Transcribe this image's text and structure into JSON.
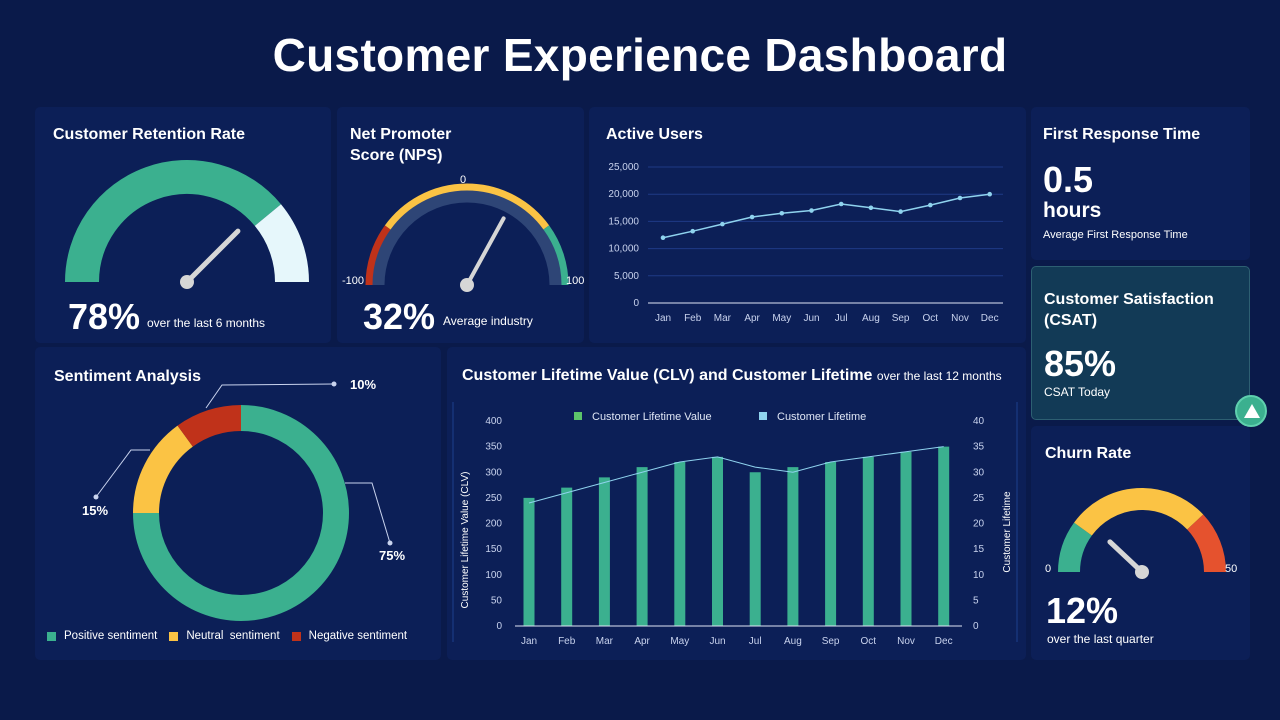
{
  "header": {
    "title": "Customer Experience Dashboard"
  },
  "colors": {
    "background": "#0a1a4a",
    "card": "#0c1f57",
    "green": "#3bb08f",
    "yellow": "#fbc344",
    "red": "#c0321a",
    "orange_red": "#e5522e",
    "light_blue": "#8fd3ee",
    "csat_card": "#123a56"
  },
  "retention": {
    "title": "Customer Retention Rate",
    "value": "78%",
    "value_fraction": 0.78,
    "caption": "over the last 6 months"
  },
  "nps": {
    "title_line1": "Net Promoter",
    "title_line2": "Score (NPS)",
    "value": "32%",
    "caption": "Average industry",
    "min_label": "-100",
    "mid_label": "0",
    "max_label": "100",
    "needle_value": 32
  },
  "active_users": {
    "title": "Active Users"
  },
  "first_response": {
    "title": "First Response Time",
    "value": "0.5",
    "unit": "hours",
    "caption": "Average First Response Time"
  },
  "csat": {
    "title_line1": "Customer Satisfaction",
    "title_line2": "(CSAT)",
    "value": "85%",
    "caption": "CSAT Today",
    "trend_icon": "triangle-up-icon"
  },
  "churn": {
    "title": "Churn Rate",
    "value": "12%",
    "caption": "over the last quarter",
    "min_label": "0",
    "max_label": "50",
    "needle_value": 12
  },
  "sentiment": {
    "title": "Sentiment Analysis",
    "labels": {
      "positive": "75%",
      "neutral": "15%",
      "negative": "10%"
    },
    "legend": [
      {
        "label": "Positive sentiment",
        "color": "#3bb08f"
      },
      {
        "label": "Neutral  sentiment",
        "color": "#fbc344"
      },
      {
        "label": "Negative sentiment",
        "color": "#c0321a"
      }
    ]
  },
  "clv": {
    "title": "Customer Lifetime Value (CLV) and Customer Lifetime",
    "subtitle": "over the last 12 months"
  },
  "chart_data": [
    {
      "type": "line",
      "title": "Active Users",
      "categories": [
        "Jan",
        "Feb",
        "Mar",
        "Apr",
        "May",
        "Jun",
        "Jul",
        "Aug",
        "Sep",
        "Oct",
        "Nov",
        "Dec"
      ],
      "values": [
        12000,
        13200,
        14500,
        15800,
        16500,
        17000,
        18200,
        17500,
        16800,
        18000,
        19300,
        20000
      ],
      "ylim": [
        0,
        25000
      ],
      "yticks": [
        "0",
        "5,000",
        "10,000",
        "15,000",
        "20,000",
        "25,000"
      ],
      "grid": true
    },
    {
      "type": "bar",
      "title": "Customer Lifetime Value (CLV) and Customer Lifetime",
      "categories": [
        "Jan",
        "Feb",
        "Mar",
        "Apr",
        "May",
        "Jun",
        "Jul",
        "Aug",
        "Sep",
        "Oct",
        "Nov",
        "Dec"
      ],
      "series": [
        {
          "name": "Customer Lifetime Value",
          "type": "bar",
          "axis": "left",
          "values": [
            250,
            270,
            290,
            310,
            320,
            330,
            300,
            310,
            320,
            330,
            340,
            350
          ]
        },
        {
          "name": "Customer Lifetime",
          "type": "line",
          "axis": "right",
          "values": [
            24,
            26,
            28,
            30,
            32,
            33,
            31,
            30,
            32,
            33,
            34,
            35
          ]
        }
      ],
      "ylabel": "Customer Lifetime Value (CLV)",
      "y2label": "Customer Lifetime",
      "ylim": [
        0,
        400
      ],
      "y2lim": [
        0,
        40
      ],
      "yticks": [
        "0",
        "50",
        "100",
        "150",
        "200",
        "250",
        "300",
        "350",
        "400"
      ],
      "y2ticks": [
        "0",
        "5",
        "10",
        "15",
        "20",
        "25",
        "30",
        "35",
        "40"
      ],
      "legend": "top"
    },
    {
      "type": "pie",
      "title": "Sentiment Analysis",
      "categories": [
        "Positive sentiment",
        "Neutral  sentiment",
        "Negative sentiment"
      ],
      "values": [
        75,
        15,
        10
      ],
      "legend": "bottom"
    }
  ]
}
